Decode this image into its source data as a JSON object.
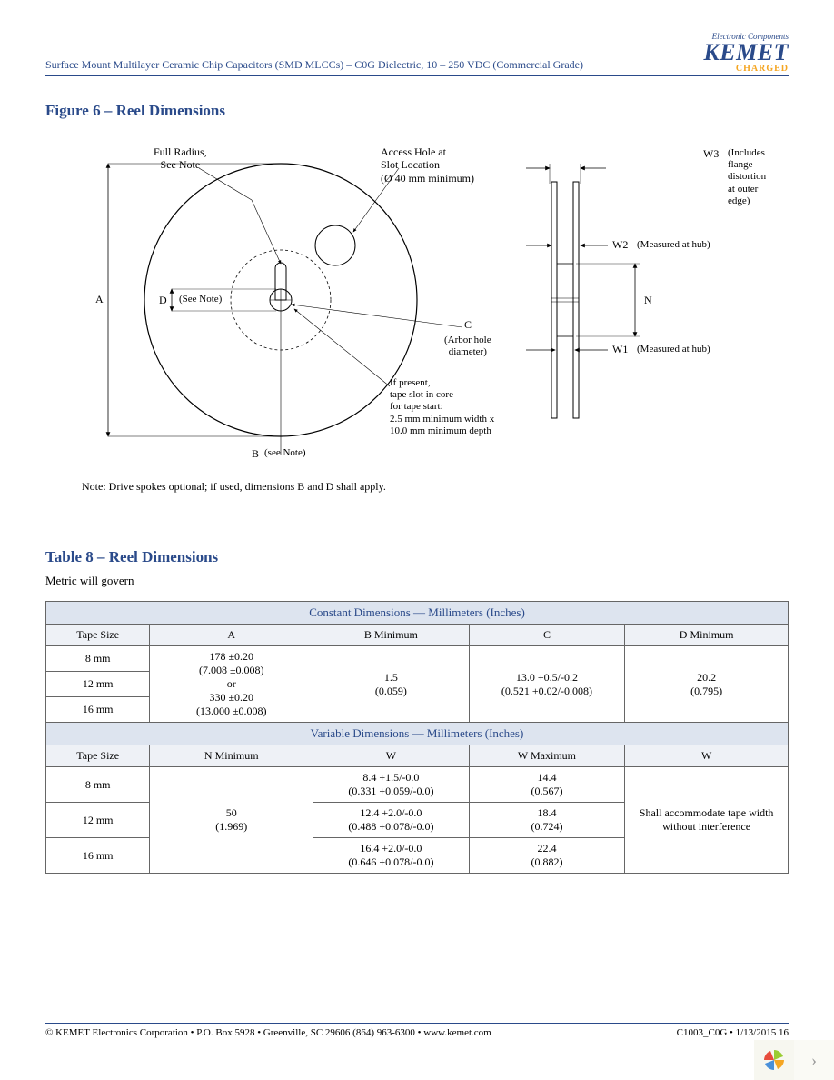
{
  "header": {
    "title": "Surface Mount Multilayer Ceramic Chip Capacitors (SMD MLCCs) – C0G Dielectric, 10 – 250 VDC (Commercial Grade)",
    "logo_tagline": "Electronic Components",
    "logo_name": "KEMET",
    "logo_sub": "CHARGED"
  },
  "figure": {
    "title": "Figure 6 – Reel Dimensions",
    "labels": {
      "full_radius": "Full Radius,\nSee Note",
      "access_hole": "Access Hole at\nSlot Location\n(Ø 40 mm minimum)",
      "W3": "W3",
      "W3_note": "(Includes\nflange distortion\nat outer edge)",
      "W2": "W2",
      "W2_note": "(Measured at hub)",
      "W1": "W1",
      "W1_note": "(Measured at hub)",
      "N": "N",
      "A": "A",
      "D": "D",
      "D_note": "(See Note)",
      "C": "C",
      "C_note": "(Arbor hole\ndiameter)",
      "B": "B",
      "B_note": "(see Note)",
      "tape_slot": "If present,\ntape slot in core\nfor tape start:\n2.5 mm minimum width x\n10.0 mm minimum depth"
    },
    "note": "Note:  Drive spokes optional; if used, dimensions B and D shall apply."
  },
  "table": {
    "title": "Table 8 – Reel Dimensions",
    "metric_note": "Metric will govern",
    "constant_header": "Constant Dimensions — Millimeters (Inches)",
    "variable_header": "Variable Dimensions — Millimeters (Inches)",
    "col_tape": "Tape Size",
    "const_cols": [
      "A",
      "B Minimum",
      "C",
      "D Minimum"
    ],
    "const_rows": {
      "sizes": [
        "8 mm",
        "12 mm",
        "16 mm"
      ],
      "A": "178 ±0.20\n(7.008 ±0.008)\nor\n330 ±0.20\n(13.000 ±0.008)",
      "B": "1.5\n(0.059)",
      "C": "13.0 +0.5/-0.2\n(0.521 +0.02/-0.008)",
      "D": "20.2\n(0.795)"
    },
    "var_cols": [
      "N Minimum",
      "W",
      "W  Maximum",
      "W"
    ],
    "var_rows": {
      "sizes": [
        "8 mm",
        "12 mm",
        "16 mm"
      ],
      "N": "50\n(1.969)",
      "W": [
        "8.4 +1.5/-0.0\n(0.331 +0.059/-0.0)",
        "12.4 +2.0/-0.0\n(0.488 +0.078/-0.0)",
        "16.4 +2.0/-0.0\n(0.646 +0.078/-0.0)"
      ],
      "Wmax": [
        "14.4\n(0.567)",
        "18.4\n(0.724)",
        "22.4\n(0.882)"
      ],
      "W3": "Shall accommodate tape width\nwithout interference"
    }
  },
  "footer": {
    "left": "© KEMET Electronics Corporation • P.O. Box 5928 • Greenville, SC 29606 (864) 963-6300 • www.kemet.com",
    "right": "C1003_C0G • 1/13/2015 16"
  }
}
